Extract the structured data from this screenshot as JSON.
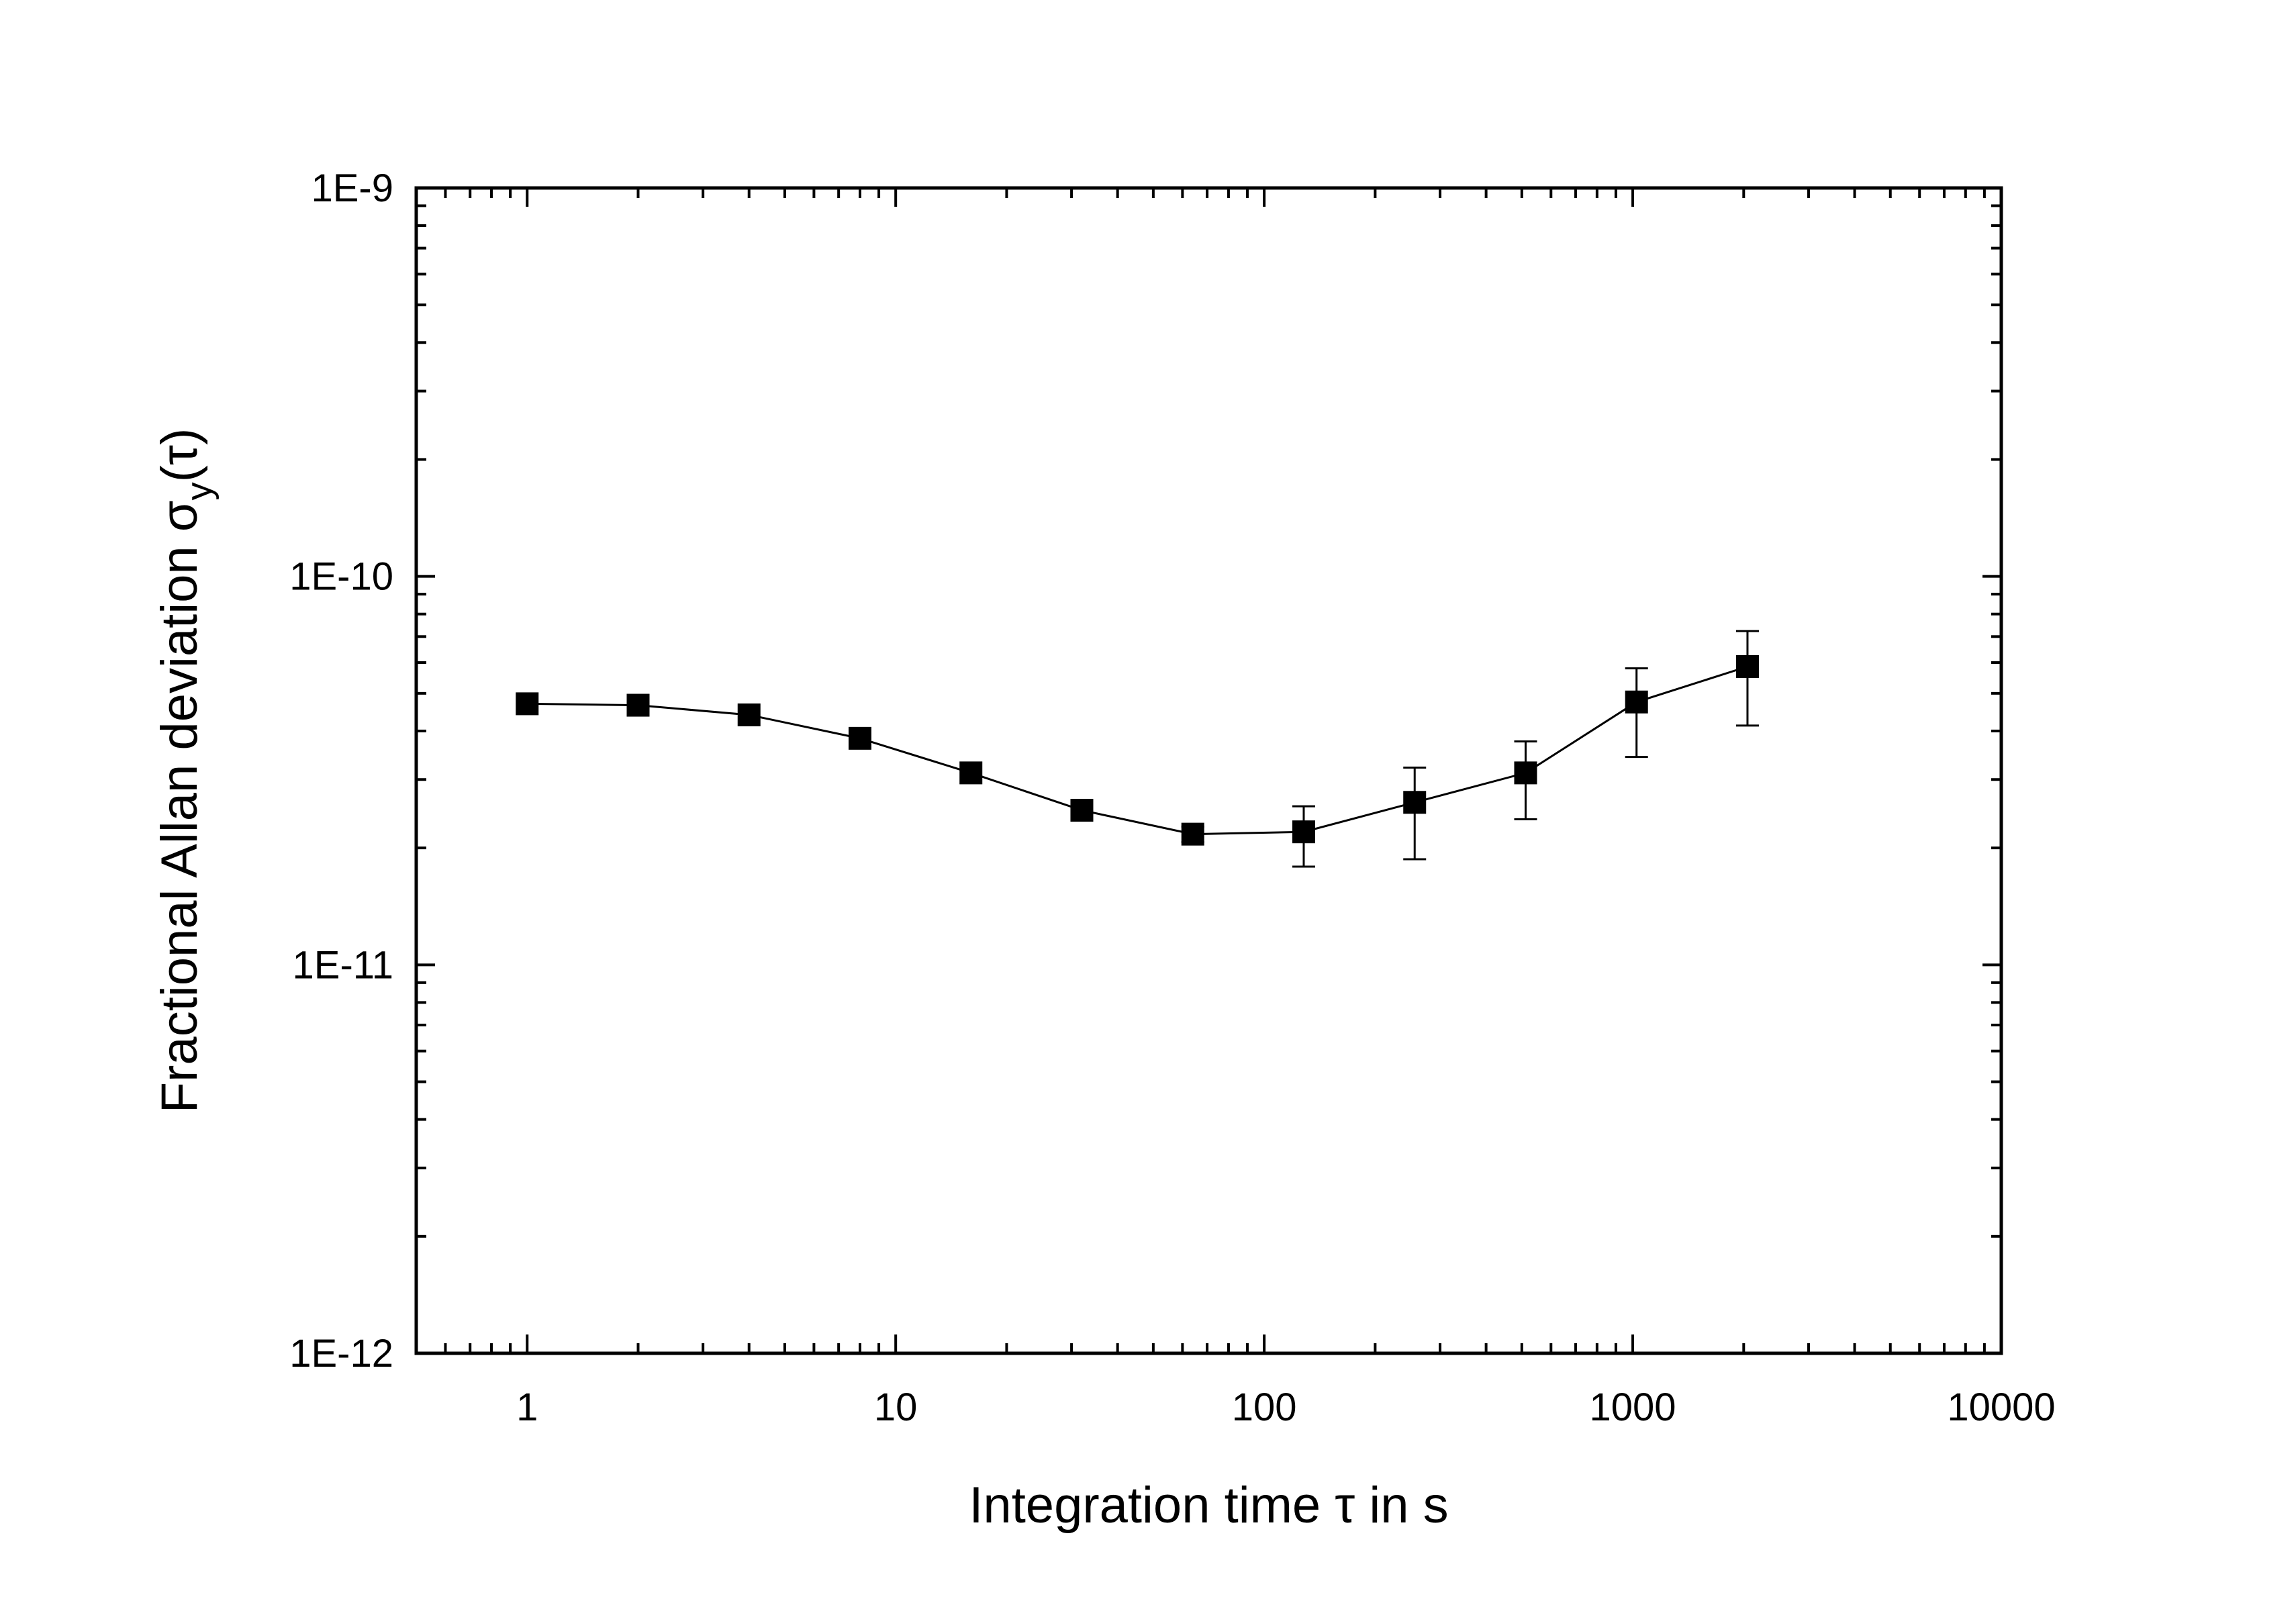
{
  "chart_data": {
    "type": "scatter",
    "title": "",
    "xlabel": "Integration time τ in s",
    "ylabel_main": "Fractional Allan deviation σ",
    "ylabel_sub": "y",
    "ylabel_tail": "(τ)",
    "x_scale": "log",
    "y_scale": "log",
    "xlim": [
      0.5,
      10000
    ],
    "ylim": [
      1e-12,
      1e-09
    ],
    "x_tick_values": [
      1,
      10,
      100,
      1000,
      10000
    ],
    "x_tick_labels": [
      "1",
      "10",
      "100",
      "1000",
      "10000"
    ],
    "y_tick_values": [
      1e-12,
      1e-11,
      1e-10,
      1e-09
    ],
    "y_tick_labels": [
      "1E-12",
      "1E-11",
      "1E-10",
      "1E-9"
    ],
    "grid": false,
    "legend": "none",
    "marker": "filled-square",
    "line": "connected",
    "color": "#000000",
    "series": [
      {
        "x": [
          1,
          2,
          4,
          8,
          16,
          32,
          64,
          128,
          256,
          512,
          1024,
          2048
        ],
        "y": [
          4.7e-11,
          4.66e-11,
          4.4e-11,
          3.83e-11,
          3.12e-11,
          2.5e-11,
          2.17e-11,
          2.2e-11,
          2.62e-11,
          3.12e-11,
          4.75e-11,
          5.86e-11
        ],
        "y_err_low": [
          null,
          null,
          null,
          null,
          null,
          null,
          2.07e-11,
          1.79e-11,
          1.87e-11,
          2.37e-11,
          3.43e-11,
          4.13e-11
        ],
        "y_err_high": [
          null,
          null,
          null,
          null,
          null,
          null,
          2.27e-11,
          2.56e-11,
          3.22e-11,
          3.76e-11,
          5.8e-11,
          7.23e-11
        ]
      }
    ]
  }
}
